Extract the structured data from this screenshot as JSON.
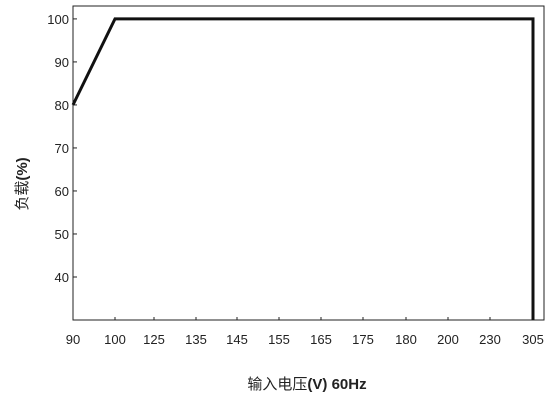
{
  "chart_data": {
    "type": "line",
    "title": "",
    "xlabel": "输入电压(V) 60Hz",
    "xlabel_parts": {
      "text": "输入电压",
      "unit": "(V) 60Hz"
    },
    "ylabel": "负载(%)",
    "ylabel_parts": {
      "text": "负载",
      "unit": "(%)"
    },
    "x_ticks": [
      "90",
      "100",
      "125",
      "135",
      "145",
      "155",
      "165",
      "175",
      "180",
      "200",
      "230",
      "305"
    ],
    "y_ticks": [
      40,
      50,
      60,
      70,
      80,
      90,
      100
    ],
    "ylim": [
      30,
      103
    ],
    "grid": false,
    "legend": "none",
    "line_color": "#111111",
    "series": [
      {
        "name": "",
        "x": [
          "90",
          "100",
          "305",
          "305"
        ],
        "values": [
          80,
          100,
          100,
          30
        ]
      }
    ]
  }
}
